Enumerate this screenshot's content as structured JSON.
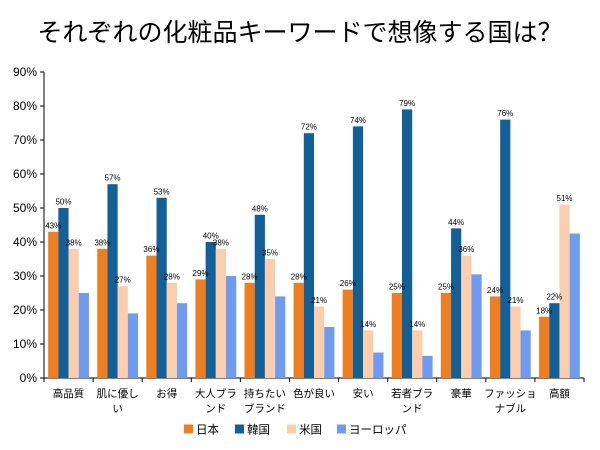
{
  "chart_data": {
    "type": "bar",
    "title": "それぞれの化粧品キーワードで想像する国は？",
    "xlabel": "",
    "ylabel": "",
    "ylim": [
      0,
      90
    ],
    "yticks": [
      "0%",
      "10%",
      "20%",
      "30%",
      "40%",
      "50%",
      "60%",
      "70%",
      "80%",
      "90%"
    ],
    "grid": false,
    "legend_position": "bottom",
    "categories": [
      [
        "高品質"
      ],
      [
        "肌に優し",
        "い"
      ],
      [
        "お得"
      ],
      [
        "大人ブラ",
        "ンド"
      ],
      [
        "持ちたい",
        "ブランド"
      ],
      [
        "色が良い"
      ],
      [
        "安い"
      ],
      [
        "若者ブラ",
        "ンド"
      ],
      [
        "豪華"
      ],
      [
        "ファッショ",
        "ナブル"
      ],
      [
        "高額"
      ]
    ],
    "series": [
      {
        "name": "日本",
        "color": "#f07d1e",
        "values": [
          43,
          38,
          36,
          29,
          28,
          28,
          26,
          25,
          25,
          24,
          18
        ],
        "labels": [
          "43%",
          "38%",
          "36%",
          "29%",
          "28%",
          "28%",
          "26%",
          "25%",
          "25%",
          "24%",
          "18%"
        ]
      },
      {
        "name": "韓国",
        "color": "#135f97",
        "values": [
          50,
          57,
          53,
          40,
          48,
          72,
          74,
          79,
          44,
          76,
          22
        ],
        "labels": [
          "50%",
          "57%",
          "53%",
          "40%",
          "48%",
          "72%",
          "74%",
          "79%",
          "44%",
          "76%",
          "22%"
        ]
      },
      {
        "name": "米国",
        "color": "#fbcfad",
        "values": [
          38,
          27,
          28,
          38,
          35,
          21,
          14,
          14,
          36,
          21,
          51
        ],
        "labels": [
          "38%",
          "27%",
          "28%",
          "38%",
          "35%",
          "21%",
          "14%",
          "14%",
          "36%",
          "21%",
          "51%"
        ]
      },
      {
        "name": "ヨーロッパ",
        "color": "#6f9bf0",
        "values": [
          25,
          19,
          22,
          30,
          24,
          15,
          7.5,
          6.5,
          30.5,
          14,
          42.5
        ],
        "labels": []
      }
    ]
  }
}
